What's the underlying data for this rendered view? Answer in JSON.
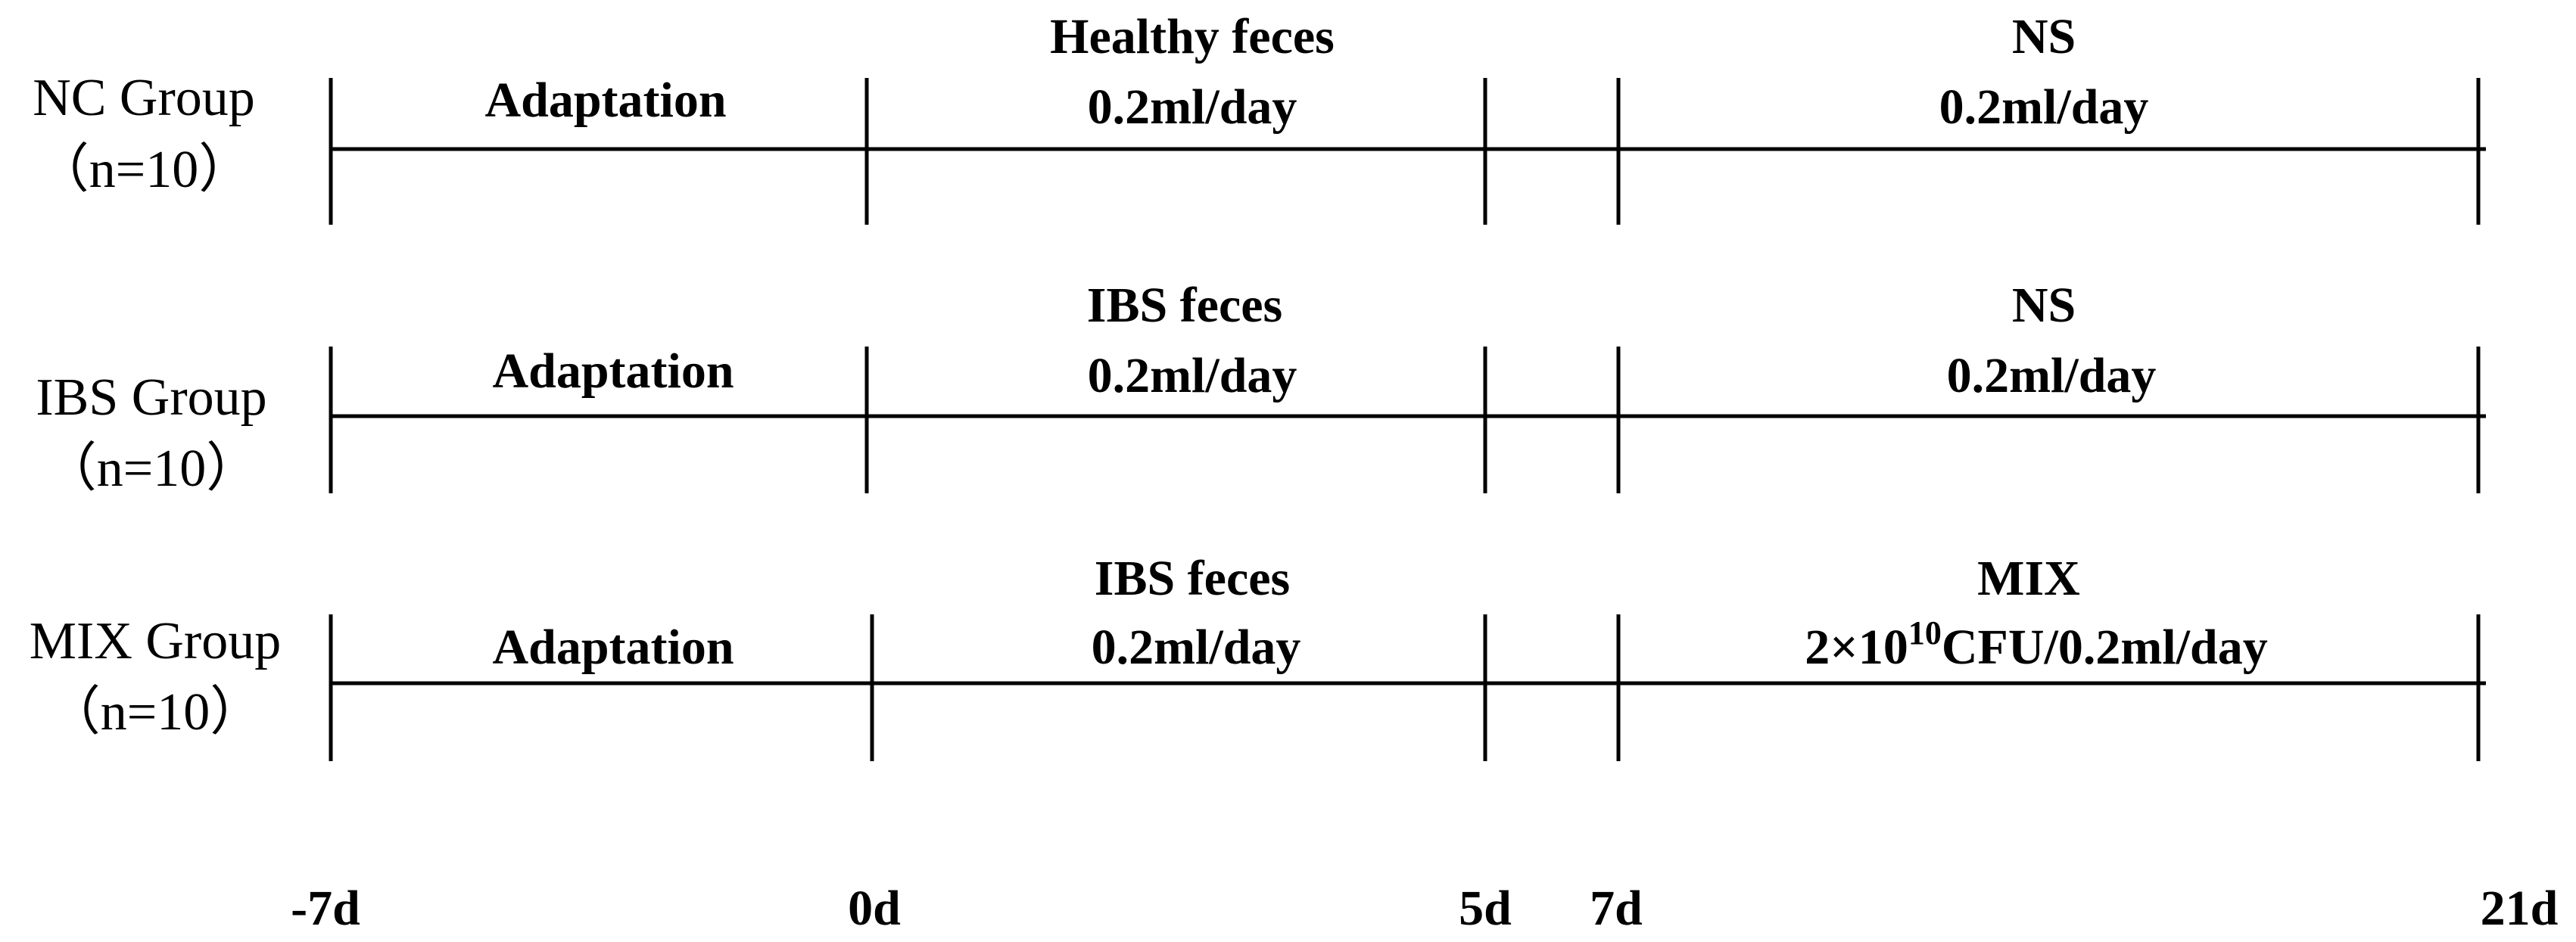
{
  "groups": [
    {
      "name": "NC Group",
      "n": "（n=10）",
      "phases": [
        {
          "line1": "Adaptation"
        },
        {
          "line1": "Healthy feces",
          "line2": "0.2ml/day"
        },
        {
          "line1": "NS",
          "line2": "0.2ml/day"
        }
      ]
    },
    {
      "name": "IBS Group",
      "n": "（n=10）",
      "phases": [
        {
          "line1": "Adaptation"
        },
        {
          "line1": "IBS feces",
          "line2": "0.2ml/day"
        },
        {
          "line1": "NS",
          "line2": "0.2ml/day"
        }
      ]
    },
    {
      "name": "MIX Group",
      "n": "（n=10）",
      "phases": [
        {
          "line1": "Adaptation"
        },
        {
          "line1": "IBS feces",
          "line2": "0.2ml/day"
        },
        {
          "line1": "MIX",
          "line2_base": "2×10",
          "line2_sup": "10",
          "line2_rest": "CFU/0.2ml/day"
        }
      ]
    }
  ],
  "timepoints": [
    "-7d",
    "0d",
    "5d",
    "7d",
    "21d"
  ]
}
